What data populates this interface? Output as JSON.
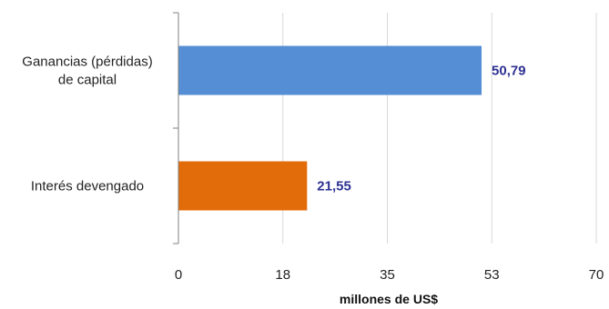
{
  "chart_data": {
    "type": "bar",
    "orientation": "horizontal",
    "categories": [
      "Ganancias (pérdidas) de capital",
      "Interés devengado"
    ],
    "category_lines": [
      [
        "Ganancias (pérdidas)",
        "de capital"
      ],
      [
        "Interés devengado"
      ]
    ],
    "values": [
      50.79,
      21.55
    ],
    "value_labels": [
      "50,79",
      "21,55"
    ],
    "bar_colors": [
      "#558ed5",
      "#e36c0a"
    ],
    "xlim": [
      0,
      70
    ],
    "xticks": [
      0,
      17.5,
      35,
      52.5,
      70
    ],
    "xtick_labels": [
      "0",
      "18",
      "35",
      "53",
      "70"
    ],
    "xlabel": "millones de US$",
    "title": "",
    "gridlines": "vertical",
    "label_color": "#2e3192"
  }
}
